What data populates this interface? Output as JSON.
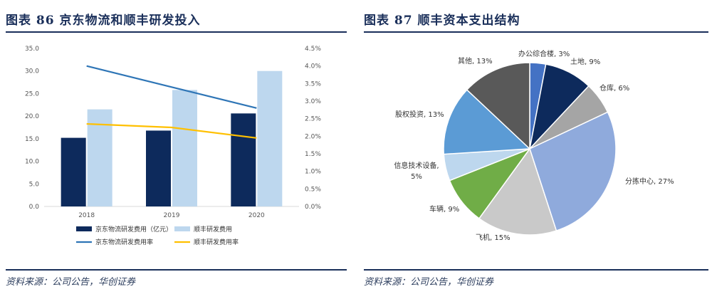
{
  "left": {
    "title": "图表 86   京东物流和顺丰研发投入",
    "source": "资料来源：公司公告，华创证券"
  },
  "right": {
    "title": "图表 87   顺丰资本支出结构",
    "source": "资料来源：公司公告，华创证券"
  },
  "colors": {
    "jd_bar": "#0d2a5c",
    "sf_bar": "#bdd7ee",
    "jd_line": "#2e75b6",
    "sf_line": "#ffc000"
  },
  "chart_data": [
    {
      "type": "bar",
      "categories": [
        "2018",
        "2019",
        "2020"
      ],
      "series": [
        {
          "name": "京东物流研发费用（亿元）",
          "kind": "bar",
          "axis": "left",
          "values": [
            15.2,
            16.8,
            20.6
          ]
        },
        {
          "name": "顺丰研发费用",
          "kind": "bar",
          "axis": "left",
          "values": [
            21.5,
            25.8,
            30.0
          ]
        },
        {
          "name": "京东物流研发费用率",
          "kind": "line",
          "axis": "right",
          "values": [
            4.0,
            3.4,
            2.8
          ]
        },
        {
          "name": "顺丰研发费用率",
          "kind": "line",
          "axis": "right",
          "values": [
            2.35,
            2.25,
            1.95
          ]
        }
      ],
      "y_left": {
        "min": 0,
        "max": 35,
        "ticks": [
          "0.0",
          "5.0",
          "10.0",
          "15.0",
          "20.0",
          "25.0",
          "30.0",
          "35.0"
        ]
      },
      "y_right": {
        "min": 0,
        "max": 4.5,
        "ticks": [
          "0.0%",
          "0.5%",
          "1.0%",
          "1.5%",
          "2.0%",
          "2.5%",
          "3.0%",
          "3.5%",
          "4.0%",
          "4.5%"
        ]
      },
      "grid": false,
      "legend": "bottom"
    },
    {
      "type": "pie",
      "slices": [
        {
          "label": "办公综合楼, 3%",
          "value": 3,
          "color": "#4472c4"
        },
        {
          "label": "土地, 9%",
          "value": 9,
          "color": "#0d2a5c"
        },
        {
          "label": "仓库, 6%",
          "value": 6,
          "color": "#a5a5a5"
        },
        {
          "label": "分拣中心, 27%",
          "value": 27,
          "color": "#8faadc"
        },
        {
          "label": "飞机, 15%",
          "value": 15,
          "color": "#c9c9c9"
        },
        {
          "label": "车辆, 9%",
          "value": 9,
          "color": "#70ad47"
        },
        {
          "label": "信息技术设备, 5%",
          "value": 5,
          "color": "#bdd7ee"
        },
        {
          "label": "股权投资, 13%",
          "value": 13,
          "color": "#5b9bd5"
        },
        {
          "label": "其他, 13%",
          "value": 13,
          "color": "#595959"
        }
      ]
    }
  ]
}
